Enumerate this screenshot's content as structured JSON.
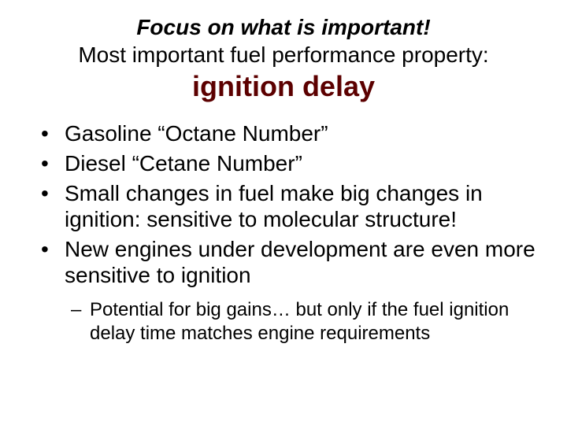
{
  "colors": {
    "background": "#ffffff",
    "body_text": "#000000",
    "emphasis": "#5c0000"
  },
  "typography": {
    "family": "Arial",
    "title_fontsize": 28,
    "emphasis_fontsize": 36,
    "bullet_fontsize": 28,
    "sub_bullet_fontsize": 24
  },
  "title": {
    "line1": "Focus on what is important!",
    "line2": "Most important fuel performance property:",
    "line3": "ignition delay"
  },
  "bullets": [
    "Gasoline “Octane Number”",
    "Diesel “Cetane Number”",
    "Small changes in fuel make big changes in ignition: sensitive to molecular structure!",
    "New engines under development are even more sensitive to ignition"
  ],
  "sub_bullets": [
    "Potential for big gains… but only if the fuel ignition delay time matches engine requirements"
  ],
  "markers": {
    "bullet": "•",
    "sub": "–"
  }
}
